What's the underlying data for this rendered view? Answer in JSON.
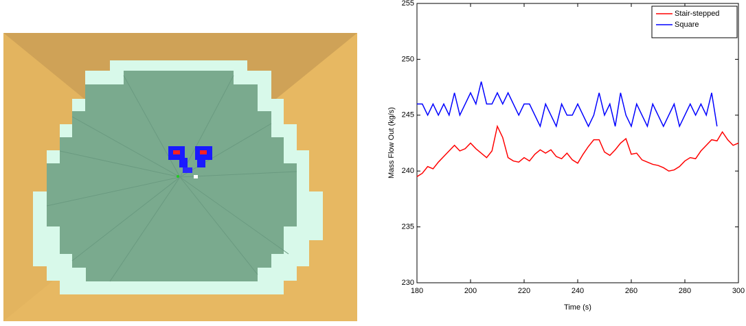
{
  "chart_data": {
    "type": "line",
    "x_label": "Time (s)",
    "y_label": "Mass Flow Out (kg/s)",
    "x": [
      180,
      182,
      184,
      186,
      188,
      190,
      192,
      194,
      196,
      198,
      200,
      202,
      204,
      206,
      208,
      210,
      212,
      214,
      216,
      218,
      220,
      222,
      224,
      226,
      228,
      230,
      232,
      234,
      236,
      238,
      240,
      242,
      244,
      246,
      248,
      250,
      252,
      254,
      256,
      258,
      260,
      262,
      264,
      266,
      268,
      270,
      272,
      274,
      276,
      278,
      280,
      282,
      284,
      286,
      288,
      290,
      292,
      294,
      296,
      298,
      300
    ],
    "series": [
      {
        "name": "Stair-stepped",
        "color": "#ff0000",
        "values": [
          239.5,
          239.8,
          240.4,
          240.2,
          240.8,
          241.3,
          241.8,
          242.3,
          241.8,
          242.0,
          242.5,
          242.0,
          241.6,
          241.2,
          241.8,
          244.0,
          243.0,
          241.2,
          240.9,
          240.8,
          241.2,
          240.9,
          241.5,
          241.9,
          241.6,
          241.9,
          241.3,
          241.1,
          241.6,
          241.0,
          240.7,
          241.5,
          242.2,
          242.8,
          242.8,
          241.7,
          241.4,
          241.9,
          242.5,
          242.9,
          241.5,
          241.6,
          241.0,
          240.8,
          240.6,
          240.5,
          240.3,
          240.0,
          240.1,
          240.4,
          240.9,
          241.2,
          241.1,
          241.8,
          242.3,
          242.8,
          242.7,
          243.5,
          242.8,
          242.3,
          242.5
        ]
      },
      {
        "name": "Square",
        "color": "#0000ff",
        "values": [
          246,
          246,
          245,
          246,
          245,
          246,
          245,
          247,
          245,
          246,
          247,
          246,
          248,
          246,
          246,
          247,
          246,
          247,
          246,
          245,
          246,
          246,
          245,
          244,
          246,
          245,
          244,
          246,
          245,
          245,
          246,
          245,
          244,
          245,
          247,
          245,
          246,
          244,
          247,
          245,
          244,
          246,
          245,
          244,
          246,
          245,
          244,
          245,
          246,
          244,
          245,
          246,
          245,
          246,
          245,
          247,
          244,
          null,
          null,
          null,
          null
        ]
      }
    ],
    "xlim": [
      180,
      300
    ],
    "xticks": [
      180,
      200,
      220,
      240,
      260,
      280,
      300
    ],
    "ylim": [
      230,
      255
    ],
    "yticks": [
      230,
      235,
      240,
      245,
      250,
      255
    ],
    "legend": "upper right"
  }
}
